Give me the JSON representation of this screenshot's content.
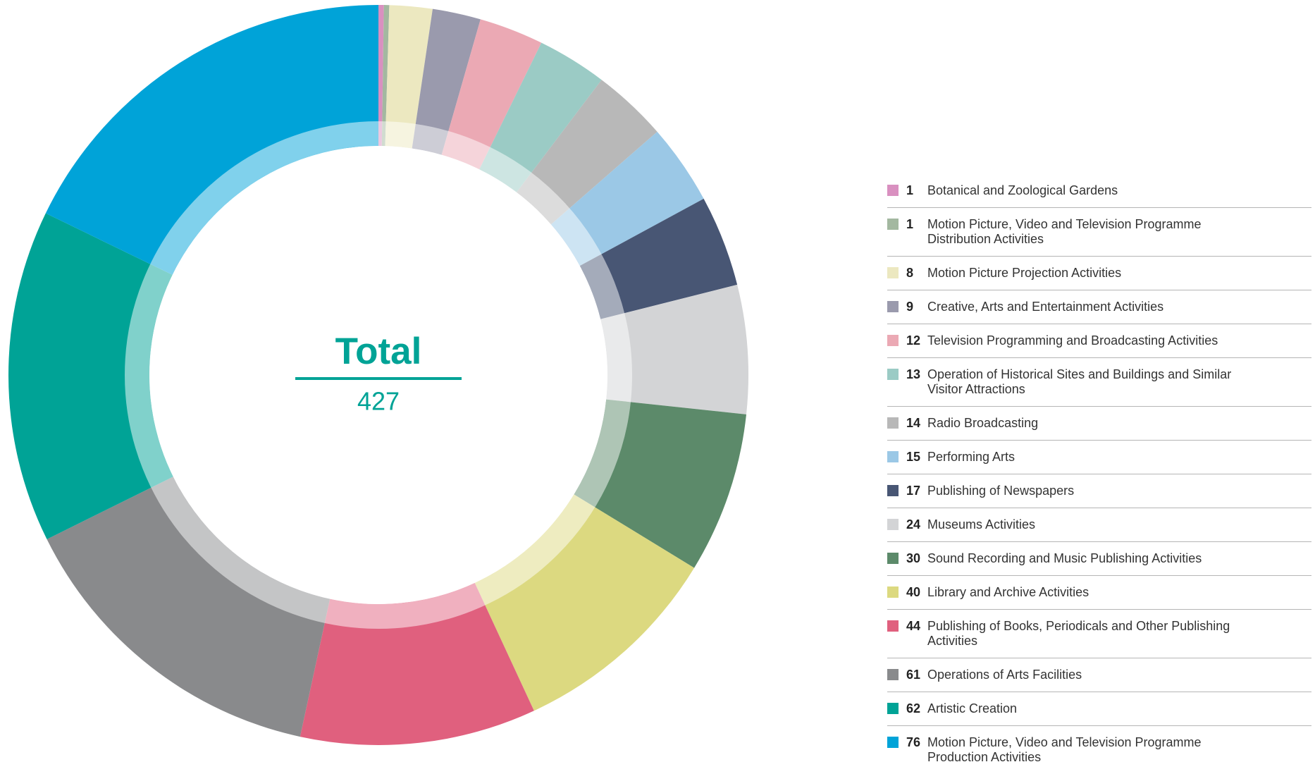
{
  "chart_data": {
    "type": "donut",
    "center_label": "Total",
    "total": 427,
    "categories": [
      "Botanical and Zoological Gardens",
      "Motion Picture, Video and Television Programme Distribution Activities",
      "Motion Picture Projection Activities",
      "Creative, Arts and Entertainment Activities",
      "Television Programming and Broadcasting Activities",
      "Operation of Historical Sites and Buildings and Similar Visitor Attractions",
      "Radio Broadcasting",
      "Performing Arts",
      "Publishing of Newspapers",
      "Museums Activities",
      "Sound Recording and Music Publishing Activities",
      "Library and Archive Activities",
      "Publishing of Books, Periodicals and Other Publishing Activities",
      "Operations of Arts Facilities",
      "Artistic Creation",
      "Motion Picture, Video and Television Programme Production Activities"
    ],
    "values": [
      1,
      1,
      8,
      9,
      12,
      13,
      14,
      15,
      17,
      24,
      30,
      40,
      44,
      61,
      62,
      76
    ],
    "colors": [
      "#d990c0",
      "#a3b8a0",
      "#ece8c0",
      "#9a9aad",
      "#eba9b4",
      "#9bcbc5",
      "#b8b8b8",
      "#9bc8e6",
      "#485674",
      "#d3d4d6",
      "#5c8a6a",
      "#dcd980",
      "#e0607e",
      "#898a8c",
      "#00a396",
      "#00a3d8"
    ]
  }
}
